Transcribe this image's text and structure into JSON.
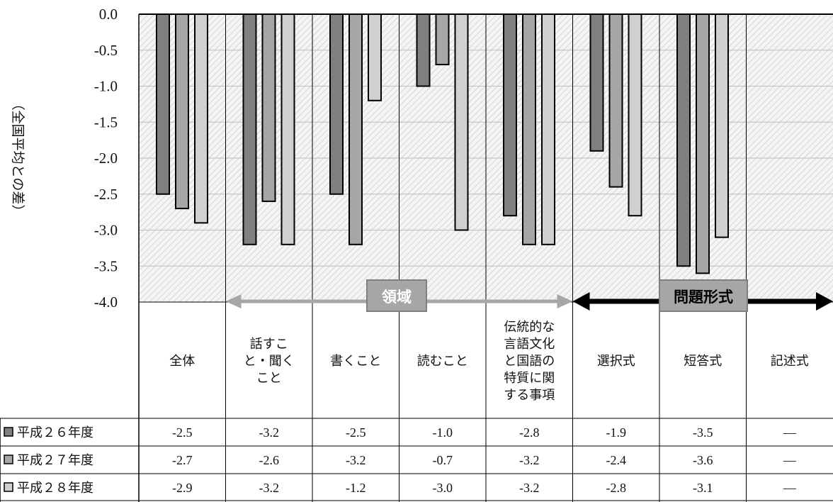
{
  "chart_data": {
    "type": "bar",
    "ylabel": "（全国平均との差）",
    "ylim": [
      -4.0,
      0.0
    ],
    "yticks": [
      "0.0",
      "-0.5",
      "-1.0",
      "-1.5",
      "-2.0",
      "-2.5",
      "-3.0",
      "-3.5",
      "-4.0"
    ],
    "categories": [
      [
        "全体"
      ],
      [
        "話すこ",
        "と・聞く",
        "こと"
      ],
      [
        "書くこと"
      ],
      [
        "読むこと"
      ],
      [
        "伝統的な",
        "言語文化",
        "と国語の",
        "特質に関",
        "する事項"
      ],
      [
        "選択式"
      ],
      [
        "短答式"
      ],
      [
        "記述式"
      ]
    ],
    "series": [
      {
        "name": "平成２６年度",
        "values": [
          -2.5,
          -3.2,
          -2.5,
          -1.0,
          -2.8,
          -1.9,
          -3.5,
          null
        ],
        "labels": [
          "-2.5",
          "-3.2",
          "-2.5",
          "-1.0",
          "-2.8",
          "-1.9",
          "-3.5",
          "―"
        ],
        "color": "#808080"
      },
      {
        "name": "平成２７年度",
        "values": [
          -2.7,
          -2.6,
          -3.2,
          -0.7,
          -3.2,
          -2.4,
          -3.6,
          null
        ],
        "labels": [
          "-2.7",
          "-2.6",
          "-3.2",
          "-0.7",
          "-3.2",
          "-2.4",
          "-3.6",
          "―"
        ],
        "color": "#a6a6a6"
      },
      {
        "name": "平成２８年度",
        "values": [
          -2.9,
          -3.2,
          -1.2,
          -3.0,
          -3.2,
          -2.8,
          -3.1,
          null
        ],
        "labels": [
          "-2.9",
          "-3.2",
          "-1.2",
          "-3.0",
          "-3.2",
          "-2.8",
          "-3.1",
          "―"
        ],
        "color": "#d0d0d0"
      }
    ],
    "groups": [
      {
        "label": "領域",
        "from": 1,
        "to": 4,
        "color": "#a6a6a6",
        "text_color": "#ffffff"
      },
      {
        "label": "問題形式",
        "from": 5,
        "to": 7,
        "color": "#000000",
        "text_color": "#000000"
      }
    ]
  }
}
